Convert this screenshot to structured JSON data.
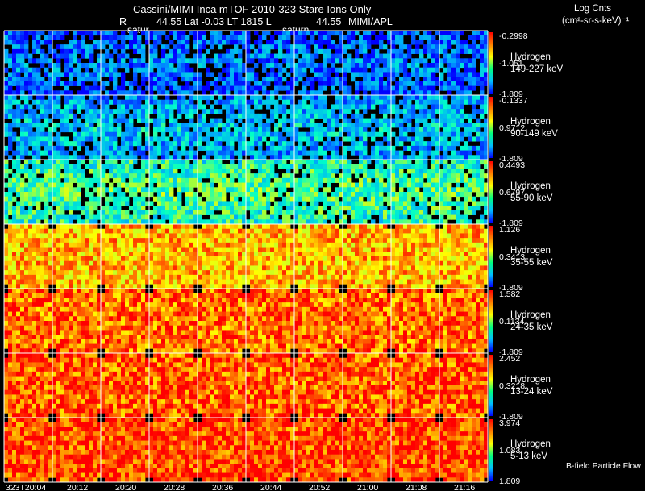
{
  "header": {
    "title": "Cassini/MIMI Inca mTOF  2010-323    Stare    Ions Only",
    "r_label": "R",
    "position_text": "44.55 Lat -0.03 LT 1815 L",
    "l_value": "44.55",
    "credit": "MIMI/APL",
    "body_a": "satur",
    "body_b": "saturn"
  },
  "legend": {
    "units_title": "Log Cnts",
    "units": "(cm²-sr-s-keV)⁻¹"
  },
  "footer": {
    "note": "B-field Particle Flow"
  },
  "colors": {
    "background": "#000000",
    "grid": "#ffffff",
    "colorbar": [
      "#ff0000",
      "#ff8000",
      "#ffff00",
      "#00ff80",
      "#00c0ff",
      "#0000ff"
    ]
  },
  "chart_data": {
    "type": "heatmap",
    "title": "Cassini/MIMI Inca mTOF 2010-323 Stare Ions Only",
    "x_tick_labels": [
      "323T20:04",
      "20:12",
      "20:20",
      "20:28",
      "20:36",
      "20:44",
      "20:52",
      "21:00",
      "21:08",
      "21:16"
    ],
    "n_frames": 10,
    "rows": [
      {
        "species": "Hydrogen",
        "energy": "149-227 keV",
        "cbar_max": "-0.2998",
        "cbar_mid": "-1.051",
        "cbar_min": "-1.809",
        "intensity": 0.18
      },
      {
        "species": "Hydrogen",
        "energy": "90-149 keV",
        "cbar_max": "-0.1337",
        "cbar_mid": "0.9712",
        "cbar_min": "-1.809",
        "intensity": 0.3
      },
      {
        "species": "Hydrogen",
        "energy": "55-90 keV",
        "cbar_max": "0.4493",
        "cbar_mid": "0.6797",
        "cbar_min": "-1.809",
        "intensity": 0.48
      },
      {
        "species": "Hydrogen",
        "energy": "35-55 keV",
        "cbar_max": "1.126",
        "cbar_mid": "0.3413",
        "cbar_min": "-1.809",
        "intensity": 0.78
      },
      {
        "species": "Hydrogen",
        "energy": "24-35 keV",
        "cbar_max": "1.582",
        "cbar_mid": "0.1134",
        "cbar_min": "-1.809",
        "intensity": 0.88
      },
      {
        "species": "Hydrogen",
        "energy": "13-24 keV",
        "cbar_max": "2.452",
        "cbar_mid": "0.3218",
        "cbar_min": "-1.809",
        "intensity": 0.9
      },
      {
        "species": "Hydrogen",
        "energy": "5-13 keV",
        "cbar_max": "3.974",
        "cbar_mid": "1.083",
        "cbar_min": "1.809",
        "intensity": 0.93
      }
    ]
  }
}
